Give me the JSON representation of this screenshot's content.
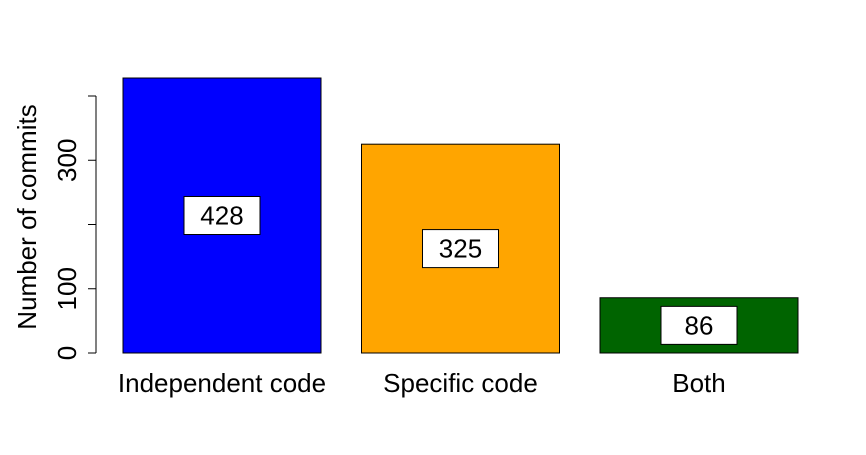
{
  "chart_data": {
    "type": "bar",
    "title": "",
    "xlabel": "",
    "ylabel": "Number of commits",
    "ylim": [
      0,
      400
    ],
    "yticks": [
      0,
      100,
      200,
      300,
      400
    ],
    "ytick_labels": [
      "0",
      "100",
      "",
      "300",
      ""
    ],
    "categories": [
      "Independent code",
      "Specific code",
      "Both"
    ],
    "values": [
      428,
      325,
      86
    ],
    "data_labels": [
      "428",
      "325",
      "86"
    ],
    "colors": [
      "#0000ff",
      "#ffa500",
      "#006400"
    ],
    "grid": false,
    "legend": "none"
  }
}
